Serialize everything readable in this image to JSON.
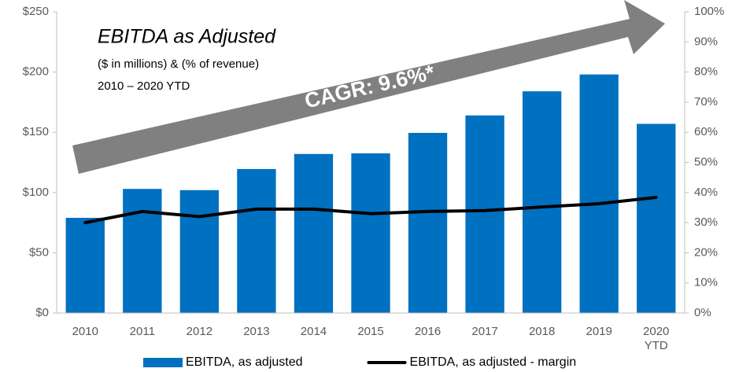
{
  "chart_data": {
    "type": "bar",
    "title": "EBITDA as Adjusted",
    "subtitle": "($ in millions) & (% of revenue)",
    "subtitle2": "2010 – 2020 YTD",
    "annotation": "CAGR: 9.6%*",
    "categories": [
      "2010",
      "2011",
      "2012",
      "2013",
      "2014",
      "2015",
      "2016",
      "2017",
      "2018",
      "2019",
      "2020 YTD"
    ],
    "series": [
      {
        "name": "EBITDA, as adjusted",
        "color": "#0070c0",
        "type": "bar",
        "values": [
          79,
          103,
          102,
          119.5,
          132,
          132.5,
          149.5,
          164,
          184,
          198,
          157
        ]
      },
      {
        "name": "EBITDA, as adjusted - margin",
        "color": "#000000",
        "type": "line",
        "axis": "y2",
        "values": [
          30,
          33.7,
          32,
          34.5,
          34.5,
          33,
          33.7,
          34,
          35.2,
          36.3,
          38.4
        ]
      }
    ],
    "ylim": [
      0,
      250
    ],
    "yticks": [
      {
        "value": 0,
        "label": "$0"
      },
      {
        "value": 50,
        "label": "$50"
      },
      {
        "value": 100,
        "label": "$100"
      },
      {
        "value": 150,
        "label": "$150"
      },
      {
        "value": 200,
        "label": "$200"
      },
      {
        "value": 250,
        "label": "$250"
      }
    ],
    "y2lim": [
      0,
      100
    ],
    "y2ticks": [
      {
        "value": 0,
        "label": "0%"
      },
      {
        "value": 10,
        "label": "10%"
      },
      {
        "value": 20,
        "label": "20%"
      },
      {
        "value": 30,
        "label": "30%"
      },
      {
        "value": 40,
        "label": "40%"
      },
      {
        "value": 50,
        "label": "50%"
      },
      {
        "value": 60,
        "label": "60%"
      },
      {
        "value": 70,
        "label": "70%"
      },
      {
        "value": 80,
        "label": "80%"
      },
      {
        "value": 90,
        "label": "90%"
      },
      {
        "value": 100,
        "label": "100%"
      }
    ],
    "grid": false,
    "legend": "bottom"
  }
}
